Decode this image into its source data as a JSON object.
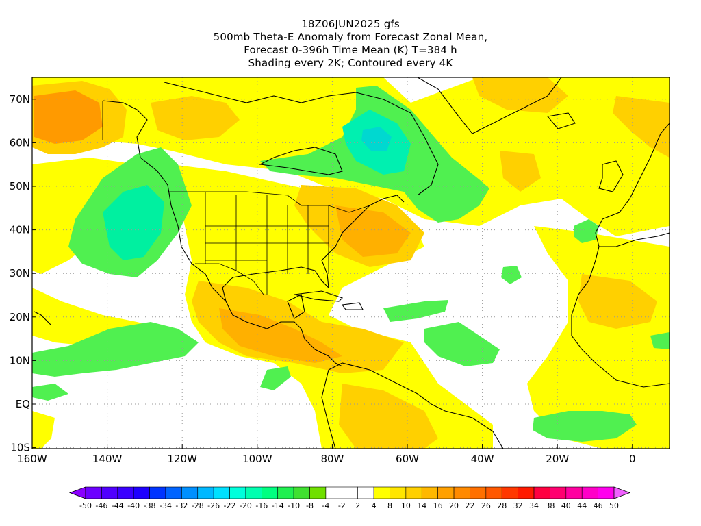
{
  "title": {
    "line1": "18Z06JUN2025 gfs",
    "line2": "500mb Theta-E Anomaly from Forecast Zonal Mean,",
    "line3": "Forecast 0-396h Time Mean (K) T=384 h",
    "line4": "Shading every 2K; Contoured every 4K"
  },
  "axes": {
    "lat_labels": [
      "70N",
      "60N",
      "50N",
      "40N",
      "30N",
      "20N",
      "10N",
      "EQ",
      "10S"
    ],
    "lon_labels": [
      "160W",
      "140W",
      "120W",
      "100W",
      "80W",
      "60W",
      "40W",
      "20W",
      "0"
    ]
  },
  "colorbar": {
    "labels": [
      "-50",
      "-46",
      "-44",
      "-40",
      "-38",
      "-34",
      "-32",
      "-28",
      "-26",
      "-22",
      "-20",
      "-16",
      "-14",
      "-10",
      "-8",
      "-4",
      "-2",
      "2",
      "4",
      "8",
      "10",
      "14",
      "16",
      "20",
      "22",
      "26",
      "28",
      "32",
      "34",
      "38",
      "40",
      "44",
      "46",
      "50"
    ],
    "colors": [
      "#8a00ff",
      "#6d00ff",
      "#5000ff",
      "#3a00ff",
      "#1e00ff",
      "#0034ff",
      "#0064ff",
      "#0090ff",
      "#00b8ff",
      "#00e0ff",
      "#00ffdc",
      "#00ffb0",
      "#00ff80",
      "#20f050",
      "#40e030",
      "#70e000",
      "#ffffff",
      "#ffffff",
      "#ffffff",
      "#ffff00",
      "#ffe600",
      "#ffd000",
      "#ffb800",
      "#ffa000",
      "#ff8a00",
      "#ff7000",
      "#ff5800",
      "#ff3800",
      "#ff1a00",
      "#ff0040",
      "#ff0070",
      "#ff00a0",
      "#ff00c8",
      "#ff00ee",
      "#f060ff"
    ]
  },
  "colors": {
    "yellow": "#ffff00",
    "light_orange": "#ffd000",
    "orange": "#ffb000",
    "dark_orange": "#ff9000",
    "green": "#50f050",
    "light_green": "#70e000",
    "cyan_green": "#00ffb0",
    "teal": "#00e0c0",
    "coast": "#000000"
  }
}
